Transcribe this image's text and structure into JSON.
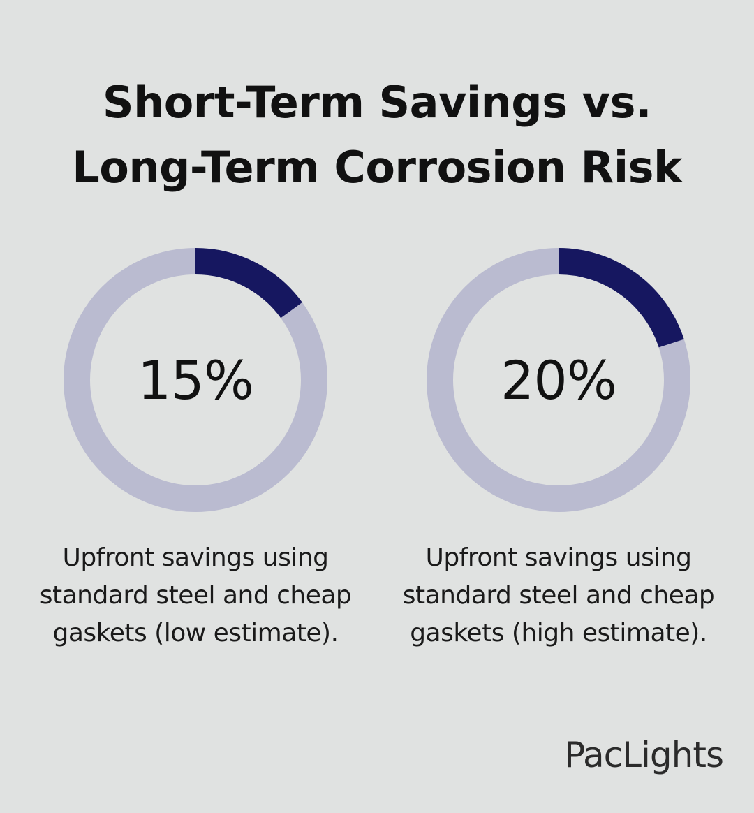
{
  "title_lines": [
    "Short-Term Savings vs.",
    "Long-Term Corrosion Risk"
  ],
  "colors": {
    "background": "#e0e2e1",
    "track": "#babbd0",
    "fill": "#161760"
  },
  "chart_data": [
    {
      "type": "pie",
      "values": [
        15,
        85
      ],
      "label": "15%",
      "caption": "Upfront savings using standard steel and cheap gaskets (low estimate)."
    },
    {
      "type": "pie",
      "values": [
        20,
        80
      ],
      "label": "20%",
      "caption": "Upfront savings using standard steel and cheap gaskets (high estimate)."
    }
  ],
  "brand": {
    "logo_text": "PacLights"
  }
}
